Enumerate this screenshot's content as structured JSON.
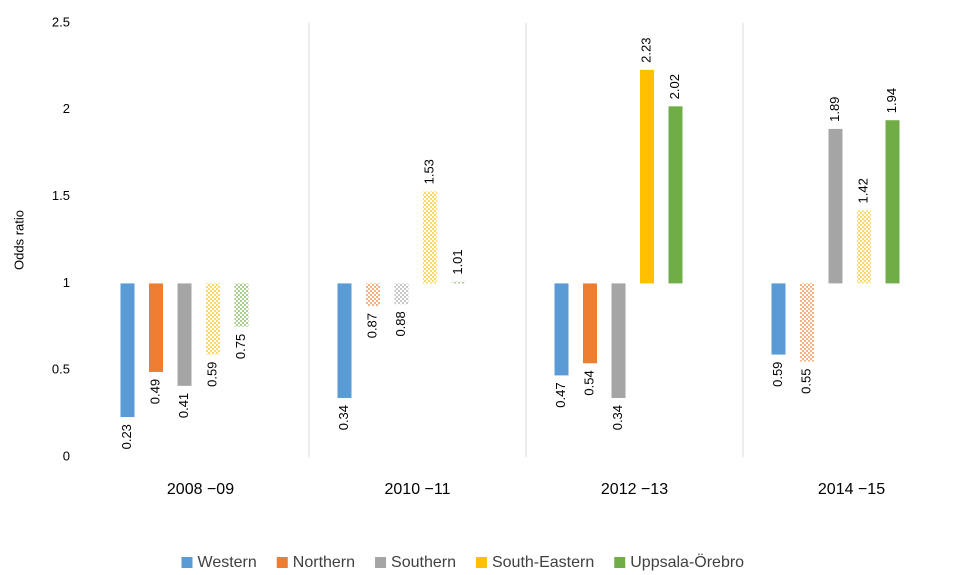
{
  "chart_data": {
    "type": "bar",
    "y_label": "Odds ratio",
    "categories": [
      "2008 −09",
      "2010 −11",
      "2012 −13",
      "2014 −15"
    ],
    "base": 1,
    "series": [
      {
        "name": "Western",
        "color": "#5b9bd5",
        "values": [
          0.23,
          0.34,
          0.47,
          0.59
        ],
        "patterned": [
          false,
          false,
          false,
          false
        ]
      },
      {
        "name": "Northern",
        "color": "#ed7d31",
        "values": [
          0.49,
          0.87,
          0.54,
          0.55
        ],
        "patterned": [
          false,
          true,
          false,
          true
        ]
      },
      {
        "name": "Southern",
        "color": "#a5a5a5",
        "values": [
          0.41,
          0.88,
          0.34,
          1.89
        ],
        "patterned": [
          false,
          true,
          false,
          false
        ]
      },
      {
        "name": "South-Eastern",
        "color": "#ffc000",
        "values": [
          0.59,
          1.53,
          2.23,
          1.42
        ],
        "patterned": [
          true,
          true,
          false,
          true
        ]
      },
      {
        "name": "Uppsala-Örebro",
        "color": "#70ad47",
        "values": [
          0.75,
          1.01,
          2.02,
          1.94
        ],
        "patterned": [
          true,
          true,
          false,
          false
        ]
      }
    ],
    "ylim": [
      0,
      2.5
    ],
    "yticks": [
      0,
      0.5,
      1,
      1.5,
      2,
      2.5
    ],
    "grid": false
  }
}
